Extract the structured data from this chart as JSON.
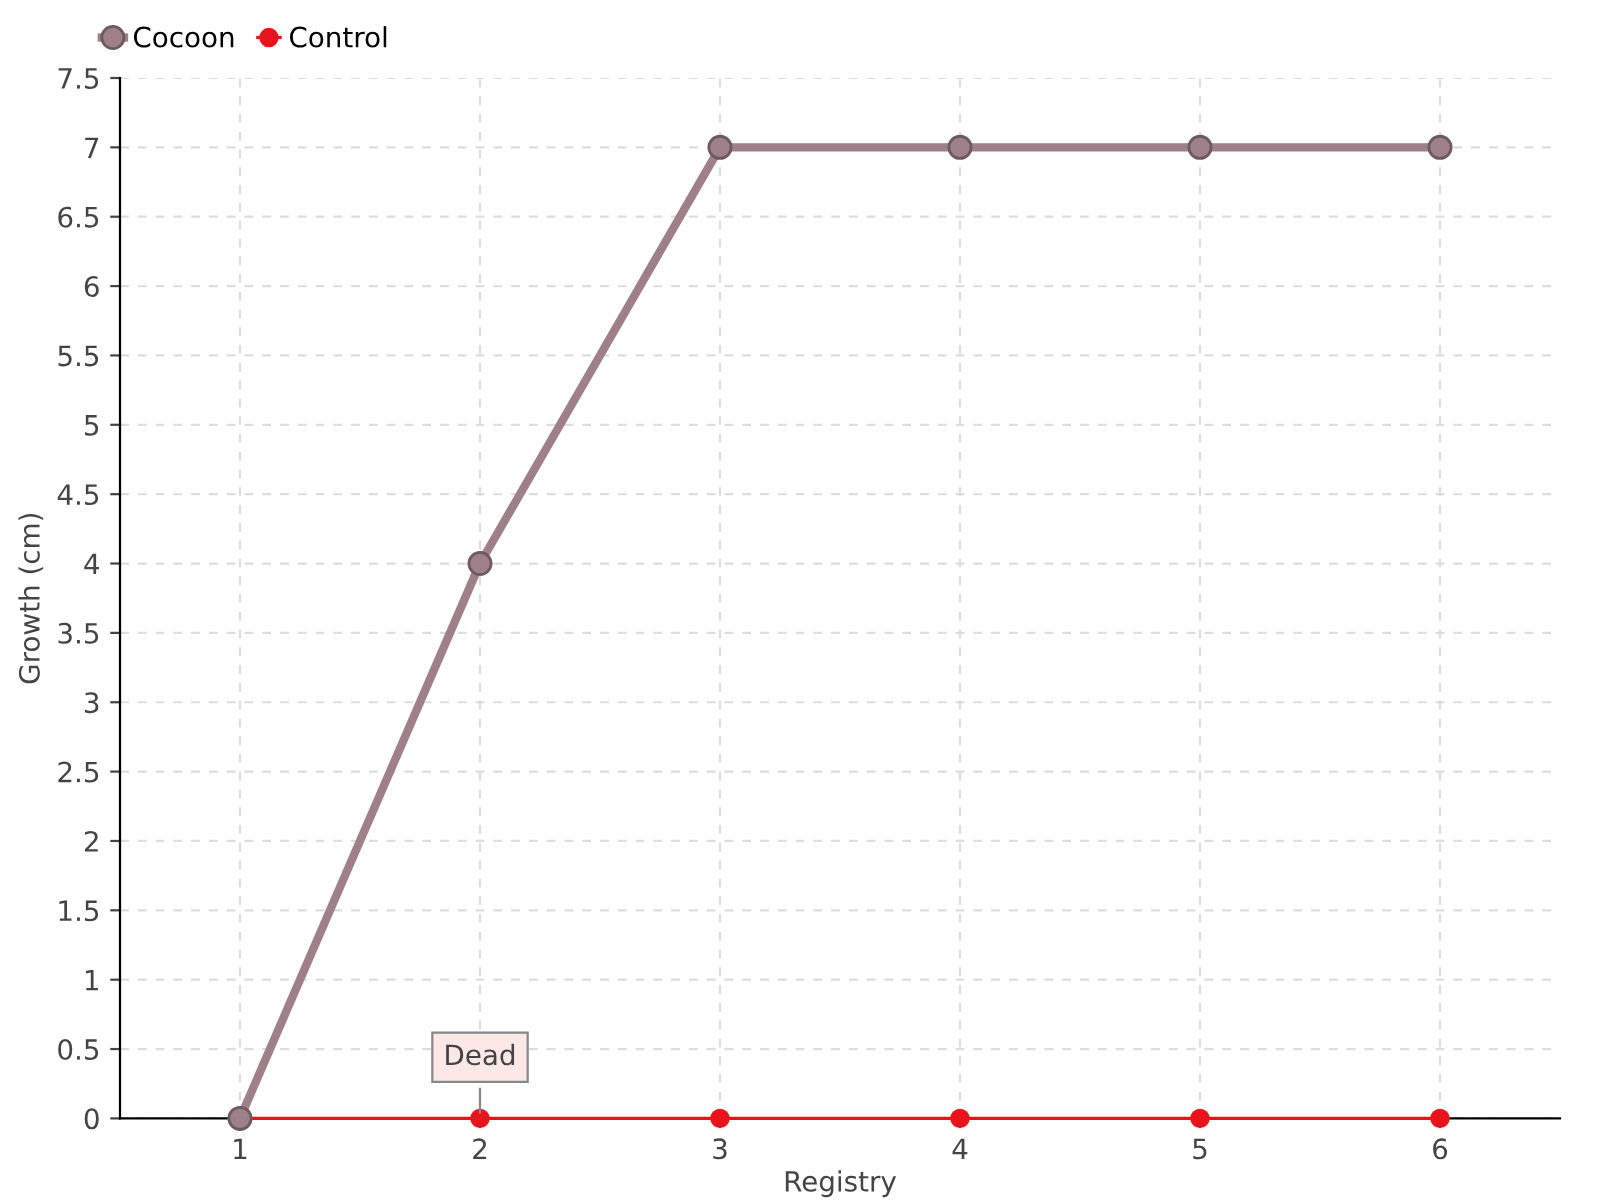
{
  "chart_data": {
    "type": "line",
    "xlabel": "Registry",
    "ylabel": "Growth (cm)",
    "categories": [
      "1",
      "2",
      "3",
      "4",
      "5",
      "6"
    ],
    "series": [
      {
        "name": "Cocoon",
        "color": "#a08088",
        "values": [
          0,
          4,
          7,
          7,
          7,
          7
        ]
      },
      {
        "name": "Control",
        "color": "#e8141c",
        "values": [
          0,
          0,
          0,
          0,
          0,
          0
        ]
      }
    ],
    "ylim": [
      0,
      7.5
    ],
    "yticks": [
      0,
      0.5,
      1,
      1.5,
      2,
      2.5,
      3,
      3.5,
      4,
      4.5,
      5,
      5.5,
      6,
      6.5,
      7,
      7.5
    ],
    "annotations": [
      {
        "text": "Dead",
        "x": "2",
        "y": 0
      }
    ],
    "grid": true,
    "legend": "top left",
    "marker": "circle",
    "line_style": "solid"
  }
}
